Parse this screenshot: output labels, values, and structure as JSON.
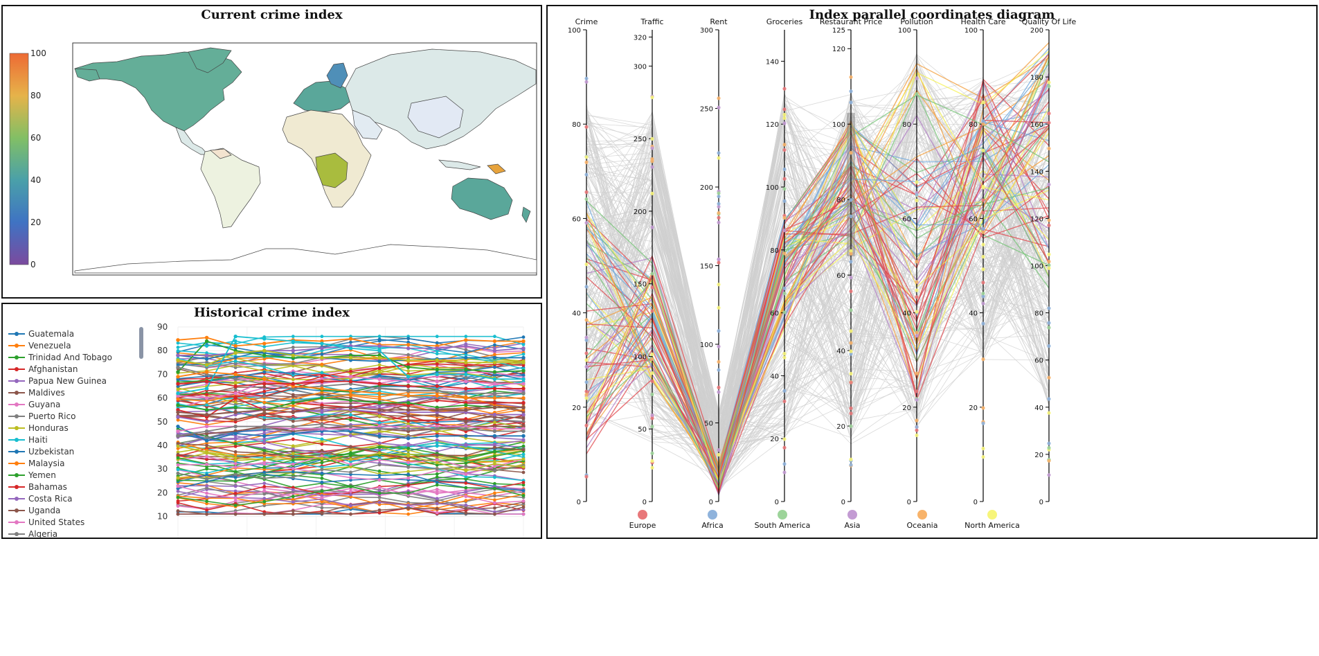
{
  "map_panel": {
    "title": "Current crime index",
    "colorbar_ticks": [
      "100",
      "80",
      "60",
      "40",
      "20",
      "0"
    ],
    "region_colors": {
      "north_america": "#64ae98",
      "europe_scandinavia": "#4f8fb8",
      "central_africa": "#a9bc3e",
      "australia": "#5aa79a",
      "png": "#e7a33c",
      "low_default": "#dce9e8",
      "africa_low": "#f0ead2"
    }
  },
  "history_panel": {
    "title": "Historical crime index",
    "legend": [
      "Guatemala",
      "Venezuela",
      "Trinidad And Tobago",
      "Afghanistan",
      "Papua New Guinea",
      "Maldives",
      "Guyana",
      "Puerto Rico",
      "Honduras",
      "Haiti",
      "Uzbekistan",
      "Malaysia",
      "Yemen",
      "Bahamas",
      "Costa Rica",
      "Uganda",
      "United States",
      "Algeria"
    ],
    "palette": [
      "#1f77b4",
      "#ff7f0e",
      "#2ca02c",
      "#d62728",
      "#9467bd",
      "#8c564b",
      "#e377c2",
      "#7f7f7f",
      "#bcbd22",
      "#17becf"
    ],
    "y_ticks": [
      "90",
      "80",
      "70",
      "60",
      "50",
      "40",
      "30",
      "20",
      "10"
    ]
  },
  "parallel_panel": {
    "title": "Index parallel coordinates diagram",
    "axes": [
      {
        "name": "Crime",
        "max": 100,
        "ticks": [
          "100",
          "80",
          "60",
          "40",
          "20",
          "0"
        ]
      },
      {
        "name": "Traffic",
        "max": 325,
        "ticks": [
          "320",
          "300",
          "250",
          "200",
          "150",
          "100",
          "50",
          "0"
        ]
      },
      {
        "name": "Rent",
        "max": 300,
        "ticks": [
          "300",
          "250",
          "200",
          "150",
          "100",
          "50",
          "0"
        ]
      },
      {
        "name": "Groceries",
        "max": 150,
        "ticks": [
          "140",
          "120",
          "100",
          "80",
          "60",
          "40",
          "20",
          "0"
        ]
      },
      {
        "name": "Restaurant Price",
        "max": 125,
        "ticks": [
          "125",
          "120",
          "100",
          "80",
          "60",
          "40",
          "20",
          "0"
        ]
      },
      {
        "name": "Pollution",
        "max": 100,
        "ticks": [
          "100",
          "80",
          "60",
          "40",
          "20",
          "0"
        ]
      },
      {
        "name": "Health Care",
        "max": 100,
        "ticks": [
          "100",
          "80",
          "60",
          "40",
          "20",
          "0"
        ]
      },
      {
        "name": "Quality Of Life",
        "max": 200,
        "ticks": [
          "200",
          "180",
          "160",
          "140",
          "120",
          "100",
          "80",
          "60",
          "40",
          "20",
          "0"
        ]
      }
    ],
    "legend": [
      {
        "label": "Europe",
        "color": "#e8787a"
      },
      {
        "label": "Africa",
        "color": "#8fb3dc"
      },
      {
        "label": "South America",
        "color": "#9dd49a"
      },
      {
        "label": "Asia",
        "color": "#c39bd3"
      },
      {
        "label": "Oceania",
        "color": "#f8b36a"
      },
      {
        "label": "North America",
        "color": "#f7f57a"
      }
    ]
  },
  "chart_data": [
    {
      "type": "heatmap",
      "title": "Current crime index",
      "colorbar_range": [
        0,
        100
      ],
      "regions": [
        {
          "region": "North America (USA/Canada)",
          "value": 47
        },
        {
          "region": "Scandinavia",
          "value": 30
        },
        {
          "region": "Central Africa",
          "value": 63
        },
        {
          "region": "Australia",
          "value": 43
        },
        {
          "region": "Papua New Guinea",
          "value": 80
        }
      ]
    },
    {
      "type": "line",
      "title": "Historical crime index",
      "ylim": [
        10,
        90
      ],
      "series": [
        {
          "name": "Guatemala",
          "values": [
            78,
            76.5,
            79,
            79,
            78,
            77,
            76,
            75.5,
            76,
            76.5,
            77,
            77,
            77
          ]
        },
        {
          "name": "Venezuela",
          "values": [
            84.5,
            85.5,
            82,
            83,
            84.5,
            84,
            85,
            82.5,
            82.5,
            82,
            84.5,
            84,
            84
          ]
        },
        {
          "name": "Trinidad And Tobago",
          "values": [
            71,
            84,
            80,
            78,
            77,
            77,
            78,
            78,
            73,
            72,
            72,
            71,
            71.5
          ]
        },
        {
          "name": "Afghanistan",
          "values": [
            55,
            52,
            60,
            55,
            58,
            57,
            56,
            58,
            57,
            59,
            58,
            58,
            58
          ]
        },
        {
          "name": "Papua New Guinea",
          "values": [
            78,
            78,
            79,
            80,
            80,
            81,
            82,
            82,
            81,
            81,
            82,
            80,
            81
          ]
        },
        {
          "name": "Maldives",
          "values": [
            44,
            45,
            46,
            48,
            46,
            47,
            48,
            47,
            46,
            47,
            48,
            48,
            48
          ]
        },
        {
          "name": "Guyana",
          "values": [
            61,
            60,
            62,
            67,
            66,
            68,
            69,
            68,
            67,
            67,
            67,
            66,
            66
          ]
        },
        {
          "name": "Puerto Rico",
          "values": [
            73,
            70,
            68,
            66,
            64,
            65,
            66,
            64,
            63,
            63,
            62,
            62,
            62
          ]
        },
        {
          "name": "Honduras",
          "values": [
            76,
            74,
            79,
            80,
            78,
            77,
            77,
            77,
            76,
            76,
            75,
            75,
            75
          ]
        },
        {
          "name": "Haiti",
          "values": [
            62,
            64,
            86,
            85,
            84,
            83,
            81,
            80,
            69,
            70,
            70,
            68,
            68
          ]
        },
        {
          "name": "Uzbekistan",
          "values": [
            48,
            42,
            45,
            44,
            45,
            46,
            46,
            44,
            43,
            44,
            44,
            44,
            44
          ]
        },
        {
          "name": "Malaysia",
          "values": [
            69,
            71,
            70,
            68,
            65,
            64,
            63,
            62,
            61,
            61,
            60,
            60,
            60
          ]
        },
        {
          "name": "Yemen",
          "values": [
            57,
            55,
            56,
            55,
            58,
            60,
            59,
            58,
            58,
            56,
            57,
            56,
            56
          ]
        },
        {
          "name": "Bahamas",
          "values": [
            66,
            67,
            65,
            66,
            66,
            67,
            67,
            66,
            65,
            65,
            64,
            64,
            64
          ]
        },
        {
          "name": "Costa Rica",
          "values": [
            52,
            50,
            53,
            55,
            54,
            55,
            55,
            54,
            54,
            54,
            54,
            53,
            53
          ]
        },
        {
          "name": "Uganda",
          "values": [
            54,
            53,
            54,
            55,
            54,
            56,
            56,
            55,
            55,
            55,
            55,
            56,
            56
          ]
        },
        {
          "name": "United States",
          "values": [
            46,
            48,
            48,
            48,
            47,
            47,
            47,
            48,
            48,
            48,
            48,
            47,
            47
          ]
        },
        {
          "name": "Algeria",
          "values": [
            44,
            46,
            48,
            48,
            48,
            49,
            48,
            47,
            47,
            47,
            47,
            46,
            46
          ]
        }
      ]
    },
    {
      "type": "line",
      "title": "Index parallel coordinates diagram",
      "dimensions": [
        "Crime",
        "Traffic",
        "Rent",
        "Groceries",
        "Restaurant Price",
        "Pollution",
        "Health Care",
        "Quality Of Life"
      ],
      "ranges": [
        [
          0,
          100
        ],
        [
          0,
          325
        ],
        [
          0,
          300
        ],
        [
          0,
          150
        ],
        [
          0,
          125
        ],
        [
          0,
          100
        ],
        [
          0,
          100
        ],
        [
          0,
          200
        ]
      ],
      "brush": {
        "dimension": "Restaurant Price",
        "range": [
          65,
          103
        ]
      },
      "groups": [
        "Europe",
        "Africa",
        "South America",
        "Asia",
        "Oceania",
        "North America"
      ]
    }
  ]
}
